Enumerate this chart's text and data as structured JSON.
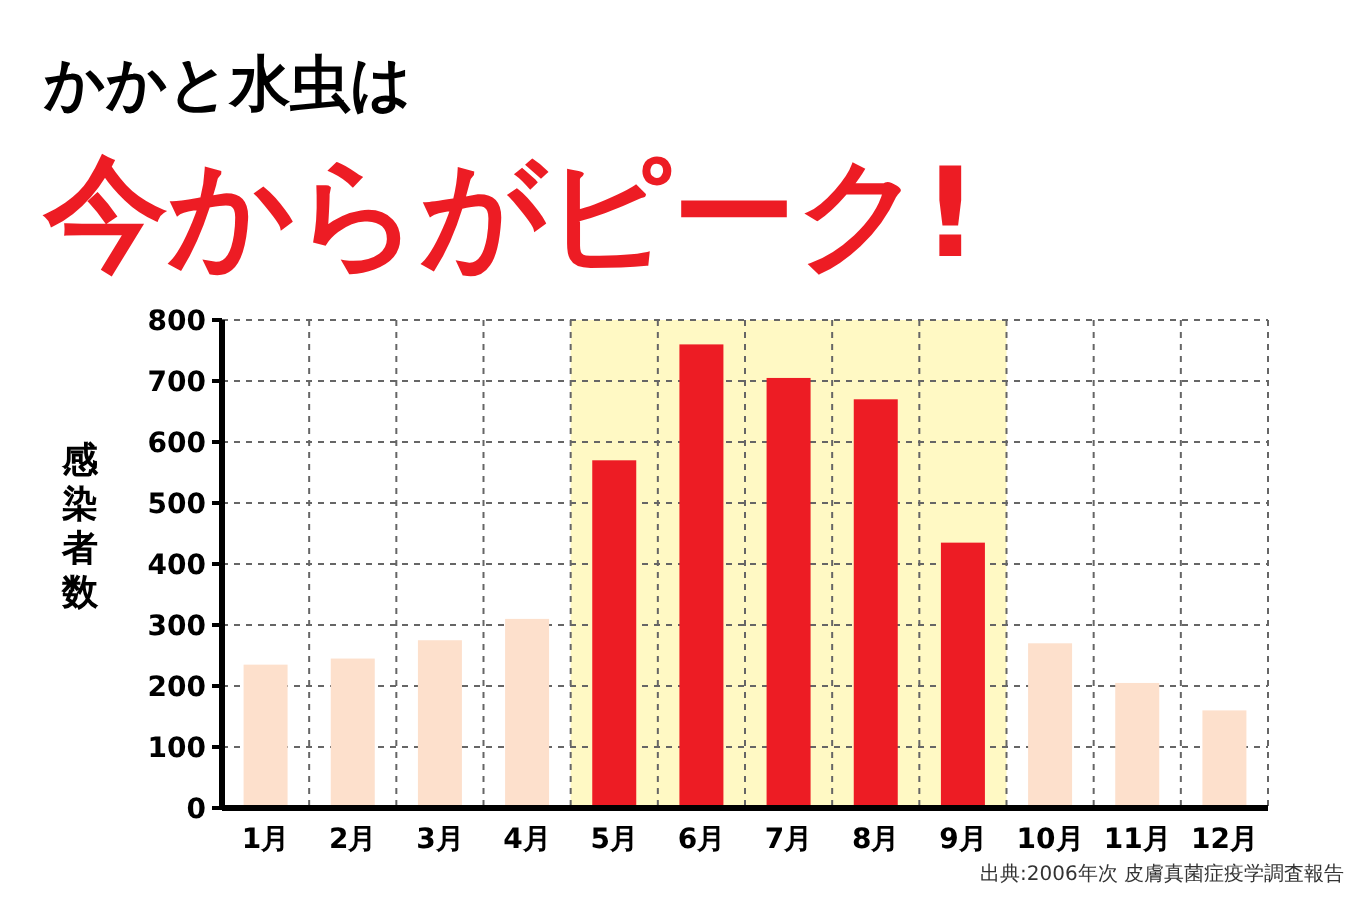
{
  "chart_data": {
    "type": "bar",
    "title": "かかと水虫は",
    "subtitle": "今からがピーク!",
    "ylabel": "感染者数",
    "categories": [
      "1月",
      "2月",
      "3月",
      "4月",
      "5月",
      "6月",
      "7月",
      "8月",
      "9月",
      "10月",
      "11月",
      "12月"
    ],
    "values": [
      235,
      245,
      275,
      310,
      570,
      760,
      705,
      670,
      435,
      270,
      205,
      160
    ],
    "colors": [
      "#fde0cc",
      "#fde0cc",
      "#fde0cc",
      "#fde0cc",
      "#ed1c24",
      "#ed1c24",
      "#ed1c24",
      "#ed1c24",
      "#ed1c24",
      "#fde0cc",
      "#fde0cc",
      "#fde0cc"
    ],
    "ylim": [
      0,
      800
    ],
    "yticks": [
      0,
      100,
      200,
      300,
      400,
      500,
      600,
      700,
      800
    ],
    "grid": true,
    "bands": [
      {
        "axis": "x",
        "from": "5月",
        "to": "9月",
        "color": "#fff9c4"
      }
    ],
    "annotations": [
      "出典:2006年次 皮膚真菌症疫学調査報告"
    ]
  }
}
